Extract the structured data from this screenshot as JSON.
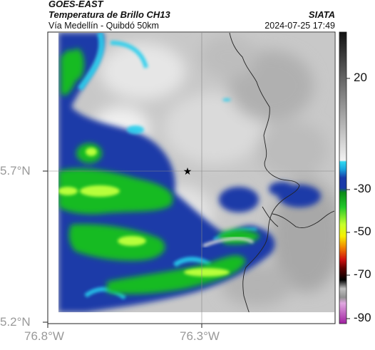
{
  "header": {
    "title": "GOES-EAST",
    "product": "Temperatura de Brillo CH13",
    "region": "Vía Medellín - Quibdó 50km",
    "organization": "SIATA",
    "timestamp": "2024-07-25 17:49"
  },
  "map": {
    "lat_ticks": [
      "5.7°N",
      "5.2°N"
    ],
    "lon_ticks": [
      "76.8°W",
      "76.3°W"
    ],
    "marker": "star-icon"
  },
  "colorbar": {
    "ticks": [
      "20",
      "-30",
      "-50",
      "-70",
      "-90"
    ],
    "colors": {
      "warm_gray": "#b5b5b5",
      "cyan": "#22d3f0",
      "blue": "#1030a0",
      "green": "#19c423",
      "lime": "#b8ff30",
      "yellow": "#f0f000",
      "red": "#e01010",
      "black": "#000000",
      "magenta": "#c040c0"
    }
  }
}
